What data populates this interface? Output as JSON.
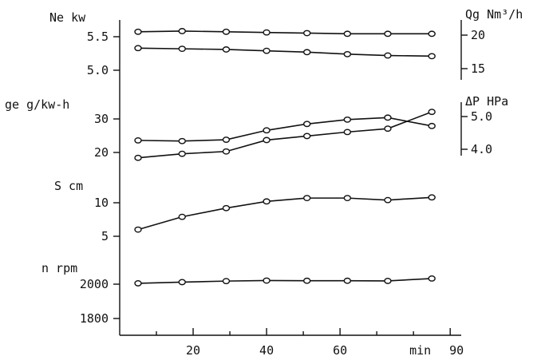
{
  "chart_data": {
    "type": "line",
    "x_axis": {
      "unit_label": "min",
      "ticks": [
        "20",
        "40",
        "60",
        "90"
      ],
      "tick_values": [
        20,
        40,
        60,
        90
      ],
      "range": [
        0,
        93
      ]
    },
    "panels": [
      {
        "id": "ne",
        "label": "Ne kw",
        "side": "left",
        "ticks": [
          "5.5",
          "5.0"
        ],
        "tick_values": [
          5.5,
          5.0
        ],
        "series": [
          {
            "axis": "left",
            "x": [
              5,
              17,
              29,
              40,
              51,
              62,
              73,
              85
            ],
            "y": [
              5.33,
              5.32,
              5.31,
              5.29,
              5.27,
              5.24,
              5.22,
              5.21
            ]
          }
        ]
      },
      {
        "id": "qg",
        "label": "Qg Nm³/h",
        "side": "right",
        "ticks": [
          "20",
          "15"
        ],
        "tick_values": [
          20,
          15
        ],
        "series": [
          {
            "axis": "right",
            "x": [
              5,
              17,
              29,
              40,
              51,
              62,
              73,
              85
            ],
            "y": [
              20.5,
              20.6,
              20.5,
              20.4,
              20.3,
              20.2,
              20.2,
              20.2
            ]
          }
        ]
      },
      {
        "id": "ge",
        "label": "ge g/kw-h",
        "side": "left",
        "ticks": [
          "30",
          "20"
        ],
        "tick_values": [
          30,
          20
        ],
        "series": [
          {
            "axis": "left",
            "x": [
              5,
              17,
              29,
              40,
              51,
              62,
              73,
              85
            ],
            "y": [
              23.6,
              23.4,
              23.8,
              26.6,
              28.5,
              29.8,
              30.4,
              27.9
            ]
          },
          {
            "axis": "left",
            "x": [
              5,
              17,
              29,
              40,
              51,
              62,
              73,
              85
            ],
            "y": [
              18.4,
              19.6,
              20.3,
              23.7,
              24.9,
              26.1,
              27.1,
              32.1
            ]
          }
        ]
      },
      {
        "id": "dp",
        "label": "ΔP HPa",
        "side": "right",
        "ticks": [
          "5.0",
          "4.0"
        ],
        "tick_values": [
          5.0,
          4.0
        ],
        "series": []
      },
      {
        "id": "s",
        "label": "S cm",
        "side": "left",
        "ticks": [
          "10",
          "5"
        ],
        "tick_values": [
          10,
          5
        ],
        "series": [
          {
            "axis": "left",
            "x": [
              5,
              17,
              29,
              40,
              51,
              62,
              73,
              85
            ],
            "y": [
              6.0,
              7.9,
              9.2,
              10.2,
              10.7,
              10.7,
              10.4,
              10.8
            ]
          }
        ]
      },
      {
        "id": "n",
        "label": "n rpm",
        "side": "left",
        "ticks": [
          "2000",
          "1800"
        ],
        "tick_values": [
          2000,
          1800
        ],
        "series": [
          {
            "axis": "left",
            "x": [
              5,
              17,
              29,
              40,
              51,
              62,
              73,
              85
            ],
            "y": [
              2005,
              2012,
              2018,
              2021,
              2020,
              2020,
              2019,
              2033
            ]
          }
        ]
      }
    ],
    "markers": [
      "circle",
      "circle",
      "circle",
      "circle",
      "circle",
      "circle",
      "circle",
      "square"
    ]
  }
}
